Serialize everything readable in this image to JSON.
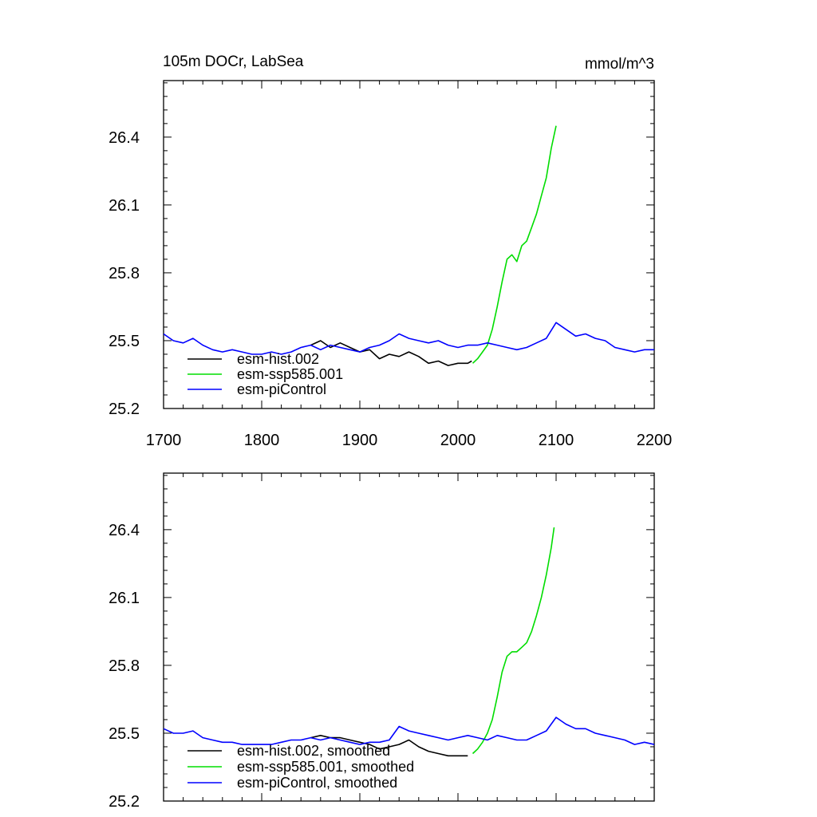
{
  "chart_data": [
    {
      "type": "line",
      "title": "105m DOCr, LabSea",
      "units": "mmol/m^3",
      "xlim": [
        1700,
        2200
      ],
      "ylim": [
        25.2,
        26.65
      ],
      "xticks": [
        "1700",
        "1800",
        "1900",
        "2000",
        "2100",
        "2200"
      ],
      "yticks": [
        "25.2",
        "25.5",
        "25.8",
        "26.1",
        "26.4"
      ],
      "legend_position": "lower-left",
      "grid": false,
      "series": [
        {
          "name": "esm-hist.002",
          "color": "#000000",
          "x": [
            1850,
            1860,
            1870,
            1880,
            1890,
            1900,
            1910,
            1920,
            1930,
            1940,
            1950,
            1960,
            1970,
            1980,
            1990,
            2000,
            2010,
            2014
          ],
          "y": [
            25.48,
            25.5,
            25.47,
            25.49,
            25.47,
            25.45,
            25.46,
            25.42,
            25.44,
            25.43,
            25.45,
            25.43,
            25.4,
            25.41,
            25.39,
            25.4,
            25.4,
            25.41
          ]
        },
        {
          "name": "esm-ssp585.001",
          "color": "#00dd00",
          "x": [
            2015,
            2020,
            2025,
            2030,
            2035,
            2040,
            2045,
            2050,
            2055,
            2060,
            2065,
            2070,
            2075,
            2080,
            2085,
            2090,
            2095,
            2100
          ],
          "y": [
            25.4,
            25.42,
            25.45,
            25.48,
            25.55,
            25.65,
            25.76,
            25.86,
            25.88,
            25.85,
            25.92,
            25.94,
            26.0,
            26.06,
            26.14,
            26.22,
            26.35,
            26.45
          ]
        },
        {
          "name": "esm-piControl",
          "color": "#0000ff",
          "x": [
            1700,
            1710,
            1720,
            1730,
            1740,
            1750,
            1760,
            1770,
            1780,
            1790,
            1800,
            1810,
            1820,
            1830,
            1840,
            1850,
            1860,
            1870,
            1880,
            1890,
            1900,
            1910,
            1920,
            1930,
            1940,
            1950,
            1960,
            1970,
            1980,
            1990,
            2000,
            2010,
            2020,
            2030,
            2040,
            2050,
            2060,
            2070,
            2080,
            2090,
            2100,
            2110,
            2120,
            2130,
            2140,
            2150,
            2160,
            2170,
            2180,
            2190,
            2200
          ],
          "y": [
            25.53,
            25.5,
            25.49,
            25.51,
            25.48,
            25.46,
            25.45,
            25.46,
            25.45,
            25.44,
            25.44,
            25.45,
            25.44,
            25.45,
            25.47,
            25.48,
            25.46,
            25.48,
            25.47,
            25.46,
            25.45,
            25.47,
            25.48,
            25.5,
            25.53,
            25.51,
            25.5,
            25.49,
            25.5,
            25.48,
            25.47,
            25.48,
            25.48,
            25.49,
            25.48,
            25.47,
            25.46,
            25.47,
            25.49,
            25.51,
            25.58,
            25.55,
            25.52,
            25.53,
            25.51,
            25.5,
            25.47,
            25.46,
            25.45,
            25.46,
            25.46
          ]
        }
      ]
    },
    {
      "type": "line",
      "title": "",
      "units": "",
      "xlim": [
        1700,
        2200
      ],
      "ylim": [
        25.2,
        26.65
      ],
      "xticks": [],
      "yticks": [
        "25.2",
        "25.5",
        "25.8",
        "26.1",
        "26.4"
      ],
      "legend_position": "lower-left",
      "grid": false,
      "series": [
        {
          "name": "esm-hist.002, smoothed",
          "color": "#000000",
          "x": [
            1850,
            1860,
            1870,
            1880,
            1890,
            1900,
            1910,
            1920,
            1930,
            1940,
            1950,
            1960,
            1970,
            1980,
            1990,
            2000,
            2010
          ],
          "y": [
            25.48,
            25.49,
            25.48,
            25.48,
            25.47,
            25.46,
            25.45,
            25.43,
            25.44,
            25.45,
            25.47,
            25.44,
            25.42,
            25.41,
            25.4,
            25.4,
            25.4
          ]
        },
        {
          "name": "esm-ssp585.001, smoothed",
          "color": "#00dd00",
          "x": [
            2015,
            2020,
            2025,
            2030,
            2035,
            2040,
            2045,
            2050,
            2055,
            2060,
            2065,
            2070,
            2075,
            2080,
            2085,
            2090,
            2095,
            2098
          ],
          "y": [
            25.41,
            25.43,
            25.46,
            25.5,
            25.56,
            25.66,
            25.77,
            25.84,
            25.86,
            25.86,
            25.88,
            25.9,
            25.95,
            26.02,
            26.1,
            26.2,
            26.32,
            26.41
          ]
        },
        {
          "name": "esm-piControl, smoothed",
          "color": "#0000ff",
          "x": [
            1700,
            1710,
            1720,
            1730,
            1740,
            1750,
            1760,
            1770,
            1780,
            1790,
            1800,
            1810,
            1820,
            1830,
            1840,
            1850,
            1860,
            1870,
            1880,
            1890,
            1900,
            1910,
            1920,
            1930,
            1940,
            1950,
            1960,
            1970,
            1980,
            1990,
            2000,
            2010,
            2020,
            2030,
            2040,
            2050,
            2060,
            2070,
            2080,
            2090,
            2100,
            2110,
            2120,
            2130,
            2140,
            2150,
            2160,
            2170,
            2180,
            2190,
            2200
          ],
          "y": [
            25.52,
            25.5,
            25.5,
            25.51,
            25.48,
            25.47,
            25.46,
            25.46,
            25.45,
            25.45,
            25.45,
            25.45,
            25.46,
            25.47,
            25.47,
            25.48,
            25.47,
            25.48,
            25.47,
            25.46,
            25.45,
            25.46,
            25.46,
            25.47,
            25.53,
            25.51,
            25.5,
            25.49,
            25.48,
            25.47,
            25.48,
            25.49,
            25.48,
            25.47,
            25.49,
            25.48,
            25.47,
            25.47,
            25.49,
            25.51,
            25.57,
            25.54,
            25.52,
            25.52,
            25.5,
            25.49,
            25.48,
            25.47,
            25.45,
            25.46,
            25.45
          ]
        }
      ]
    }
  ]
}
